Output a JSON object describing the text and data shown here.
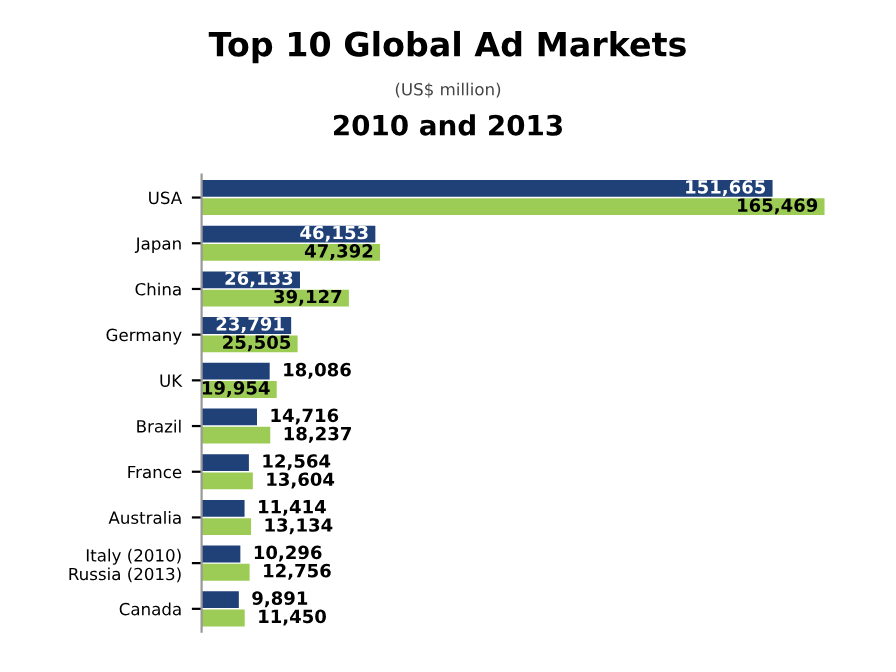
{
  "chart_data": {
    "type": "bar",
    "orientation": "horizontal",
    "title": "Top 10 Global Ad Markets",
    "subtitle": "(US$ million)",
    "annotations": [
      "2010 and 2013"
    ],
    "categories": [
      "USA",
      "Japan",
      "China",
      "Germany",
      "UK",
      "Brazil",
      "France",
      "Australia",
      "Italy (2010)\nRussia (2013)",
      "Canada"
    ],
    "series": [
      {
        "color": "#1f4178",
        "values": [
          151665,
          46153,
          26133,
          23791,
          18086,
          14716,
          12564,
          11414,
          10296,
          9891
        ],
        "value_labels": [
          "151,665",
          "46,153",
          "26,133",
          "23,791",
          "18,086",
          "14,716",
          "12,564",
          "11,414",
          "10,296",
          "9,891"
        ]
      },
      {
        "color": "#9ccc55",
        "values": [
          165469,
          47392,
          39127,
          25505,
          19954,
          18237,
          13604,
          13134,
          12756,
          11450
        ],
        "value_labels": [
          "165,469",
          "47,392",
          "39,127",
          "25,505",
          "19,954",
          "18,237",
          "13,604",
          "13,134",
          "12,756",
          "11,450"
        ]
      }
    ],
    "grid": false
  }
}
